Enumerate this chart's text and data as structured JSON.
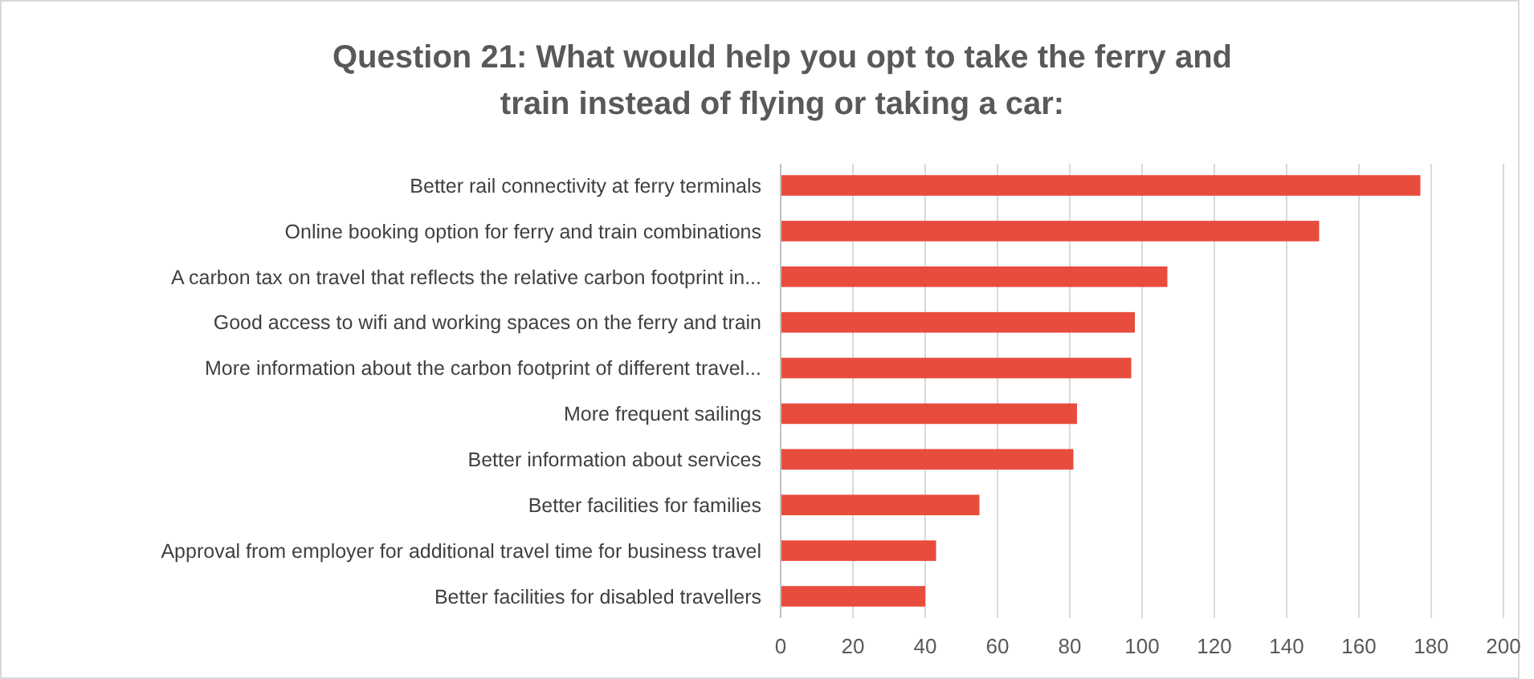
{
  "chart_data": {
    "type": "bar",
    "orientation": "horizontal",
    "title": "Question 21: What would help you opt to take the ferry and train instead of flying or taking a car:",
    "categories": [
      "Better rail connectivity at ferry terminals",
      "Online booking option for ferry and train combinations",
      "A carbon tax on travel that reflects the relative carbon footprint in...",
      "Good access to wifi and working spaces on the ferry and train",
      "More information about the carbon footprint of different travel...",
      "More frequent sailings",
      "Better information about services",
      "Better facilities for families",
      "Approval from employer for additional travel time for business travel",
      "Better facilities for disabled travellers"
    ],
    "values": [
      177,
      149,
      107,
      98,
      97,
      82,
      81,
      55,
      43,
      40
    ],
    "color": "#e84c3d",
    "xlim": [
      0,
      200
    ],
    "xticks": [
      0,
      20,
      40,
      60,
      80,
      100,
      120,
      140,
      160,
      180,
      200
    ],
    "grid": "x"
  }
}
